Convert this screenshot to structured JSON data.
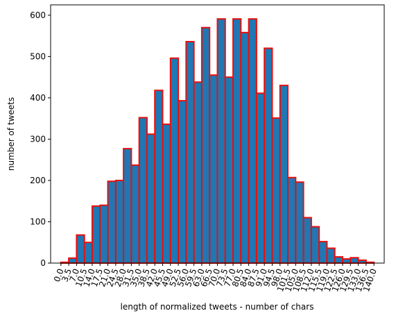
{
  "chart_data": {
    "type": "histogram",
    "xlabel": "length of normalized tweets - number of chars",
    "ylabel": "number of tweets",
    "bins": [
      0,
      3.5,
      7,
      10.5,
      14,
      17.5,
      21,
      24.5,
      28,
      31.5,
      35,
      38.5,
      42,
      45.5,
      49,
      52.5,
      56,
      59.5,
      63,
      66.5,
      70,
      73.5,
      77,
      80.5,
      84,
      87.5,
      91,
      94.5,
      98,
      101.5,
      105,
      108.5,
      112,
      115.5,
      119,
      122.5,
      126,
      129.5,
      133,
      136.5,
      140
    ],
    "counts": [
      2,
      12,
      68,
      50,
      138,
      140,
      198,
      200,
      277,
      237,
      352,
      312,
      418,
      336,
      496,
      393,
      536,
      438,
      570,
      455,
      591,
      450,
      591,
      558,
      591,
      411,
      520,
      351,
      430,
      207,
      196,
      110,
      88,
      52,
      36,
      15,
      10,
      13,
      7,
      2
    ],
    "color": "#1f77b4",
    "edgecolor": "#e8100c",
    "xlim": [
      -4.6,
      144.6
    ],
    "ylim": [
      0,
      625
    ],
    "xticks": [
      {
        "value": 0,
        "label": "0.0"
      },
      3.5,
      {
        "value": 7,
        "label": "7.0"
      },
      10.5,
      {
        "value": 14,
        "label": "14.0"
      },
      17.5,
      {
        "value": 21,
        "label": "21.0"
      },
      24.5,
      {
        "value": 28,
        "label": "28.0"
      },
      31.5,
      {
        "value": 35,
        "label": "35.0"
      },
      38.5,
      {
        "value": 42,
        "label": "42.0"
      },
      45.5,
      {
        "value": 49,
        "label": "49.0"
      },
      52.5,
      {
        "value": 56,
        "label": "56.0"
      },
      59.5,
      {
        "value": 63,
        "label": "63.0"
      },
      66.5,
      {
        "value": 70,
        "label": "70.0"
      },
      73.5,
      {
        "value": 77,
        "label": "77.0"
      },
      80.5,
      {
        "value": 84,
        "label": "84.0"
      },
      87.5,
      {
        "value": 91,
        "label": "91.0"
      },
      94.5,
      {
        "value": 98,
        "label": "98.0"
      },
      101.5,
      {
        "value": 105,
        "label": "105.0"
      },
      108.5,
      {
        "value": 112,
        "label": "112.0"
      },
      115.5,
      {
        "value": 119,
        "label": "119.0"
      },
      122.5,
      {
        "value": 126,
        "label": "126.0"
      },
      129.5,
      {
        "value": 133,
        "label": "133.0"
      },
      136.5,
      {
        "value": 140,
        "label": "140.0"
      }
    ],
    "yticks": [
      0,
      100,
      200,
      300,
      400,
      500,
      600
    ]
  }
}
